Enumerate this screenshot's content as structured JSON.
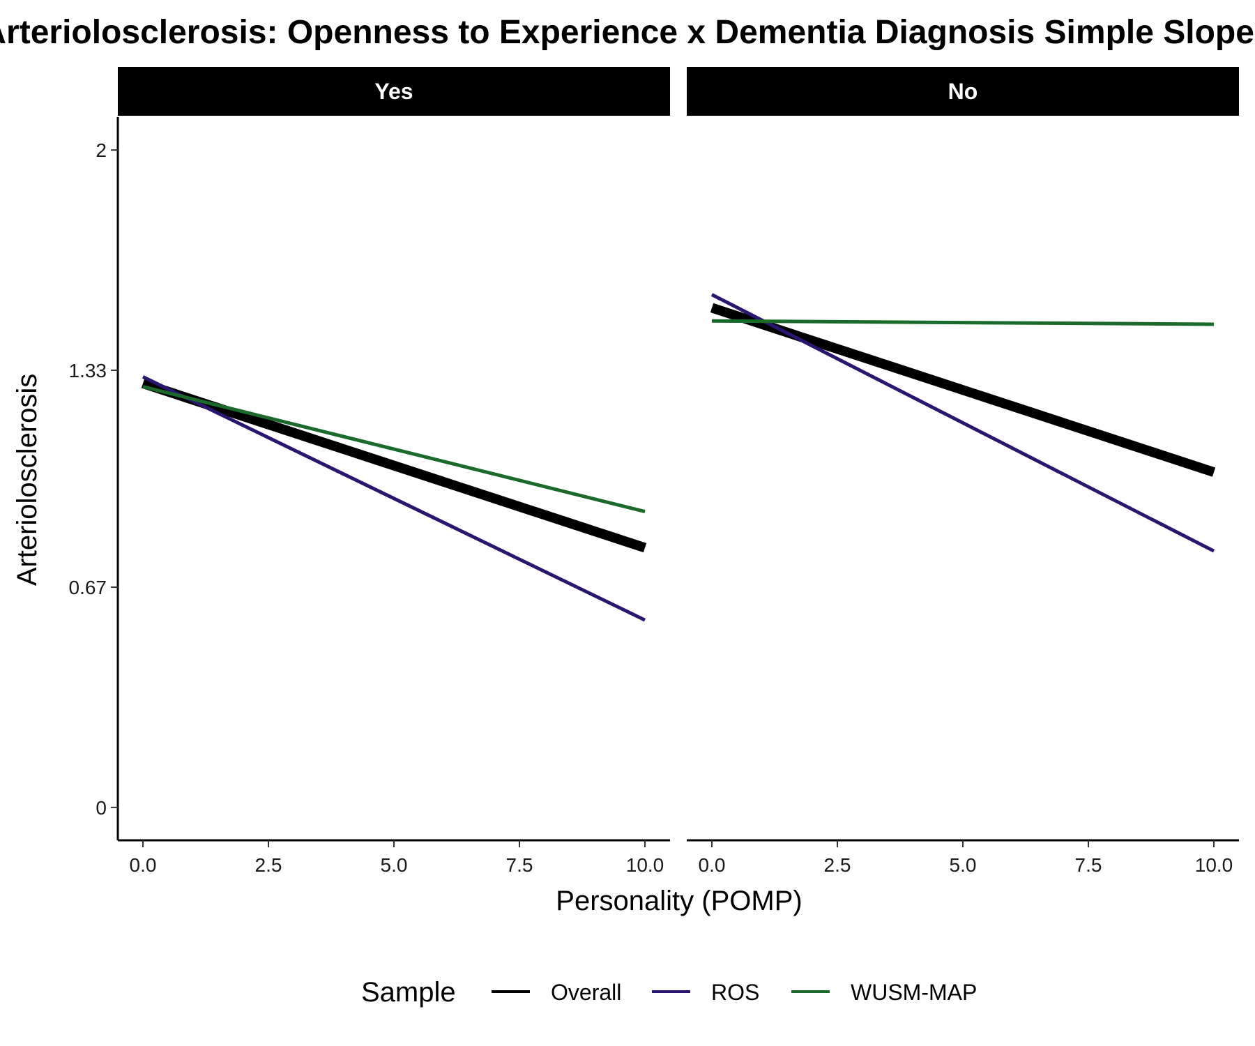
{
  "chart_data": {
    "type": "line",
    "title": "Arteriolosclerosis: Openness to Experience x Dementia Diagnosis Simple Slopes",
    "xlabel": "Personality (POMP)",
    "ylabel": "Arteriolosclerosis",
    "xlim": [
      -0.5,
      10.5
    ],
    "ylim": [
      -0.1,
      2.1
    ],
    "x_ticks": [
      0,
      2.5,
      5,
      7.5,
      10
    ],
    "x_tick_labels": [
      "0.0",
      "2.5",
      "5.0",
      "7.5",
      "10.0"
    ],
    "y_ticks": [
      0,
      0.67,
      1.33,
      2
    ],
    "y_tick_labels": [
      "0",
      "0.67",
      "1.33",
      "2"
    ],
    "legend": {
      "title": "Sample",
      "position": "bottom"
    },
    "series_styles": [
      {
        "name": "Overall",
        "color": "#000000",
        "width": "thick"
      },
      {
        "name": "ROS",
        "color": "#2a1670",
        "width": "normal"
      },
      {
        "name": "WUSM-MAP",
        "color": "#1a6a2a",
        "width": "normal"
      }
    ],
    "panels": [
      {
        "label": "Yes",
        "series": [
          {
            "name": "Overall",
            "x": [
              0,
              10
            ],
            "y": [
              1.29,
              0.79
            ]
          },
          {
            "name": "ROS",
            "x": [
              0,
              10
            ],
            "y": [
              1.31,
              0.57
            ]
          },
          {
            "name": "WUSM-MAP",
            "x": [
              0,
              10
            ],
            "y": [
              1.28,
              0.9
            ]
          }
        ]
      },
      {
        "label": "No",
        "series": [
          {
            "name": "Overall",
            "x": [
              0,
              10
            ],
            "y": [
              1.52,
              1.02
            ]
          },
          {
            "name": "ROS",
            "x": [
              0,
              10
            ],
            "y": [
              1.56,
              0.78
            ]
          },
          {
            "name": "WUSM-MAP",
            "x": [
              0,
              10
            ],
            "y": [
              1.48,
              1.47
            ]
          }
        ]
      }
    ]
  }
}
